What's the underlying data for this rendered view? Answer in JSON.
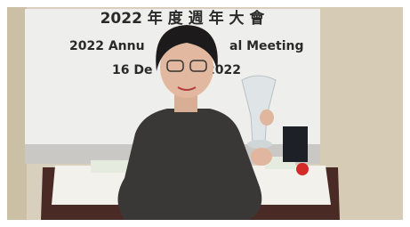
{
  "banner": {
    "title": "2022 年 度 週 年 大 會",
    "subtitle_parts": [
      "2022 Annu",
      "al Meeting"
    ],
    "date_parts": [
      "16 De",
      "2022"
    ]
  }
}
